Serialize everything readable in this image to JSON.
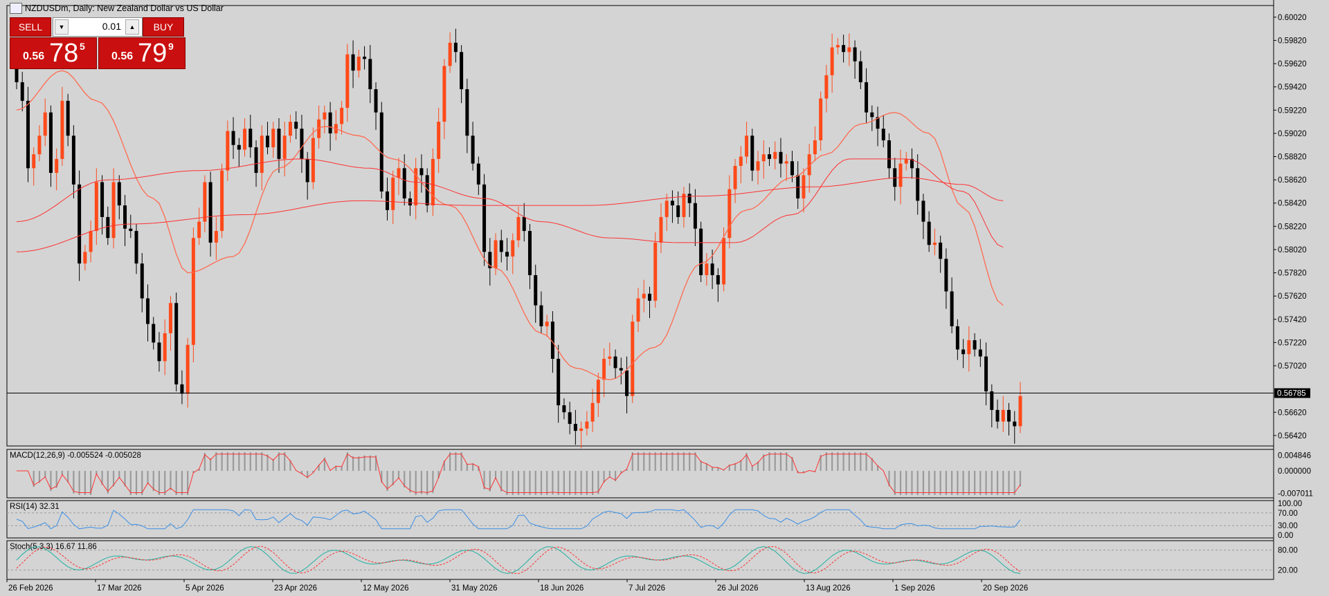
{
  "window": {
    "title": "NZDUSDm, Daily:  New Zealand Dollar vs US Dollar"
  },
  "trade_panel": {
    "sell_label": "SELL",
    "buy_label": "BUY",
    "lot_value": "0.01",
    "sell_price": {
      "prefix": "0.56",
      "big": "78",
      "sup": "5"
    },
    "buy_price": {
      "prefix": "0.56",
      "big": "79",
      "sup": "9"
    }
  },
  "colors": {
    "bull": "#ff4a1a",
    "bear": "#000000",
    "ma": "#ff3030",
    "ma_light": "#ff6a50",
    "rsi": "#3a8ee6",
    "stoch_main": "#20b0a0",
    "stoch_signal": "#ff3030",
    "background": "#d4d4d4"
  },
  "chart_data": {
    "type": "candlestick",
    "symbol": "NZDUSDm",
    "timeframe": "Daily",
    "current_price": 0.56785,
    "current_price_label": "0.56785",
    "y_range": [
      0.5633,
      0.6012
    ],
    "y_ticks": [
      "0.60020",
      "0.59820",
      "0.59620",
      "0.59420",
      "0.59220",
      "0.59020",
      "0.58820",
      "0.58620",
      "0.58420",
      "0.58220",
      "0.58020",
      "0.57820",
      "0.57620",
      "0.57420",
      "0.57220",
      "0.57020",
      "0.56620",
      "0.56420"
    ],
    "x_ticks": [
      "26 Feb 2026",
      "17 Mar 2026",
      "5 Apr 2026",
      "23 Apr 2026",
      "12 May 2026",
      "31 May 2026",
      "18 Jun 2026",
      "7 Jul 2026",
      "26 Jul 2026",
      "13 Aug 2026",
      "1 Sep 2026",
      "20 Sep 2026"
    ],
    "closes": [
      0.5946,
      0.593,
      0.5872,
      0.5884,
      0.59,
      0.592,
      0.5868,
      0.588,
      0.593,
      0.59,
      0.5858,
      0.579,
      0.58,
      0.5818,
      0.586,
      0.583,
      0.5812,
      0.586,
      0.584,
      0.582,
      0.5818,
      0.579,
      0.576,
      0.5738,
      0.5722,
      0.5706,
      0.573,
      0.5756,
      0.5686,
      0.5678,
      0.572,
      0.5812,
      0.5826,
      0.586,
      0.5808,
      0.5818,
      0.587,
      0.5904,
      0.5892,
      0.5888,
      0.5906,
      0.589,
      0.5868,
      0.59,
      0.589,
      0.5906,
      0.588,
      0.59,
      0.5912,
      0.5906,
      0.588,
      0.586,
      0.5898,
      0.5914,
      0.592,
      0.5902,
      0.591,
      0.5924,
      0.597,
      0.5956,
      0.5968,
      0.5966,
      0.594,
      0.592,
      0.5852,
      0.5836,
      0.5864,
      0.5872,
      0.5846,
      0.584,
      0.5872,
      0.5866,
      0.584,
      0.588,
      0.5912,
      0.596,
      0.598,
      0.5972,
      0.594,
      0.59,
      0.5876,
      0.5858,
      0.58,
      0.5786,
      0.581,
      0.58,
      0.5796,
      0.581,
      0.583,
      0.5818,
      0.578,
      0.5754,
      0.5736,
      0.574,
      0.5708,
      0.5668,
      0.5662,
      0.5652,
      0.5646,
      0.5648,
      0.5654,
      0.567,
      0.569,
      0.5708,
      0.571,
      0.57,
      0.5698,
      0.5676,
      0.574,
      0.576,
      0.5764,
      0.5758,
      0.5808,
      0.583,
      0.5844,
      0.584,
      0.583,
      0.585,
      0.5842,
      0.582,
      0.578,
      0.579,
      0.578,
      0.5772,
      0.5812,
      0.5854,
      0.5874,
      0.5882,
      0.59,
      0.587,
      0.5878,
      0.5884,
      0.588,
      0.5886,
      0.5876,
      0.5878,
      0.5866,
      0.5846,
      0.5866,
      0.5884,
      0.5896,
      0.5932,
      0.5952,
      0.5976,
      0.5978,
      0.5972,
      0.5976,
      0.5964,
      0.5946,
      0.592,
      0.5916,
      0.5906,
      0.5896,
      0.5872,
      0.5856,
      0.5876,
      0.588,
      0.5872,
      0.5844,
      0.5826,
      0.5806,
      0.5808,
      0.5794,
      0.5766,
      0.5736,
      0.5716,
      0.5712,
      0.5724,
      0.5716,
      0.571,
      0.568,
      0.5664,
      0.5654,
      0.5664,
      0.5654,
      0.565,
      0.5676
    ],
    "ma_fast_anchors": [
      [
        0,
        0.5922
      ],
      [
        8,
        0.5956
      ],
      [
        14,
        0.593
      ],
      [
        24,
        0.5846
      ],
      [
        30,
        0.5782
      ],
      [
        38,
        0.5796
      ],
      [
        46,
        0.5872
      ],
      [
        54,
        0.5908
      ],
      [
        60,
        0.59
      ],
      [
        66,
        0.588
      ],
      [
        76,
        0.584
      ],
      [
        84,
        0.5786
      ],
      [
        92,
        0.573
      ],
      [
        98,
        0.57
      ],
      [
        104,
        0.569
      ],
      [
        112,
        0.5718
      ],
      [
        120,
        0.579
      ],
      [
        128,
        0.5836
      ],
      [
        136,
        0.5864
      ],
      [
        142,
        0.5884
      ],
      [
        148,
        0.591
      ],
      [
        154,
        0.592
      ],
      [
        160,
        0.5902
      ],
      [
        166,
        0.5838
      ],
      [
        173,
        0.5754
      ]
    ],
    "ma_mid_anchors": [
      [
        0,
        0.5826
      ],
      [
        16,
        0.5862
      ],
      [
        32,
        0.587
      ],
      [
        50,
        0.588
      ],
      [
        62,
        0.5872
      ],
      [
        70,
        0.586
      ],
      [
        82,
        0.5846
      ],
      [
        92,
        0.5826
      ],
      [
        104,
        0.5812
      ],
      [
        116,
        0.5808
      ],
      [
        126,
        0.5808
      ],
      [
        136,
        0.5832
      ],
      [
        146,
        0.588
      ],
      [
        156,
        0.588
      ],
      [
        166,
        0.5852
      ],
      [
        173,
        0.5804
      ]
    ],
    "ma_slow_anchors": [
      [
        0,
        0.58
      ],
      [
        20,
        0.5824
      ],
      [
        40,
        0.5832
      ],
      [
        60,
        0.5844
      ],
      [
        80,
        0.584
      ],
      [
        100,
        0.584
      ],
      [
        120,
        0.5848
      ],
      [
        140,
        0.5856
      ],
      [
        156,
        0.5864
      ],
      [
        166,
        0.5858
      ],
      [
        173,
        0.5844
      ]
    ],
    "macd": {
      "label": "MACD(12,26,9) -0.005524 -0.005028",
      "ticks": [
        "0.004846",
        "0.000000",
        "-0.007011"
      ],
      "range": [
        -0.0075,
        0.0058
      ]
    },
    "rsi": {
      "label": "RSI(14) 32.31",
      "ticks": [
        "100.00",
        "70.00",
        "30.00",
        "0.00"
      ],
      "levels": [
        70,
        30
      ]
    },
    "stoch": {
      "label": "Stoch(5,3,3) 16.67 11.86",
      "ticks": [
        "80.00",
        "20.00"
      ],
      "levels": [
        80,
        20
      ]
    }
  }
}
